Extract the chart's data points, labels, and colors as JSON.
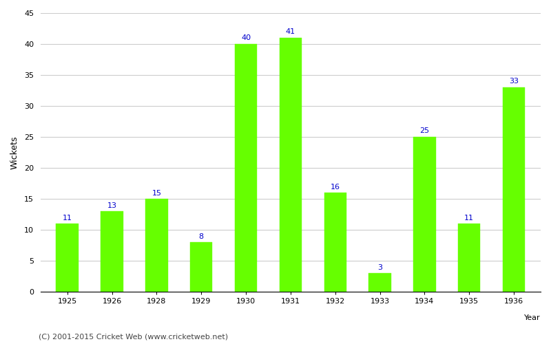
{
  "years": [
    1925,
    1926,
    1928,
    1929,
    1930,
    1931,
    1932,
    1933,
    1934,
    1935,
    1936
  ],
  "wickets": [
    11,
    13,
    15,
    8,
    40,
    41,
    16,
    3,
    25,
    11,
    33
  ],
  "bar_color": "#66ff00",
  "bar_edge_color": "#66ff00",
  "label_color": "#0000cc",
  "label_fontsize": 8,
  "ylabel": "Wickets",
  "xlabel_label": "Year",
  "ylim": [
    0,
    45
  ],
  "yticks": [
    0,
    5,
    10,
    15,
    20,
    25,
    30,
    35,
    40,
    45
  ],
  "grid_color": "#cccccc",
  "background_color": "#ffffff",
  "footnote": "(C) 2001-2015 Cricket Web (www.cricketweb.net)",
  "footnote_fontsize": 8,
  "footnote_color": "#444444",
  "ylabel_fontsize": 9,
  "tick_fontsize": 8,
  "bar_width": 0.5
}
